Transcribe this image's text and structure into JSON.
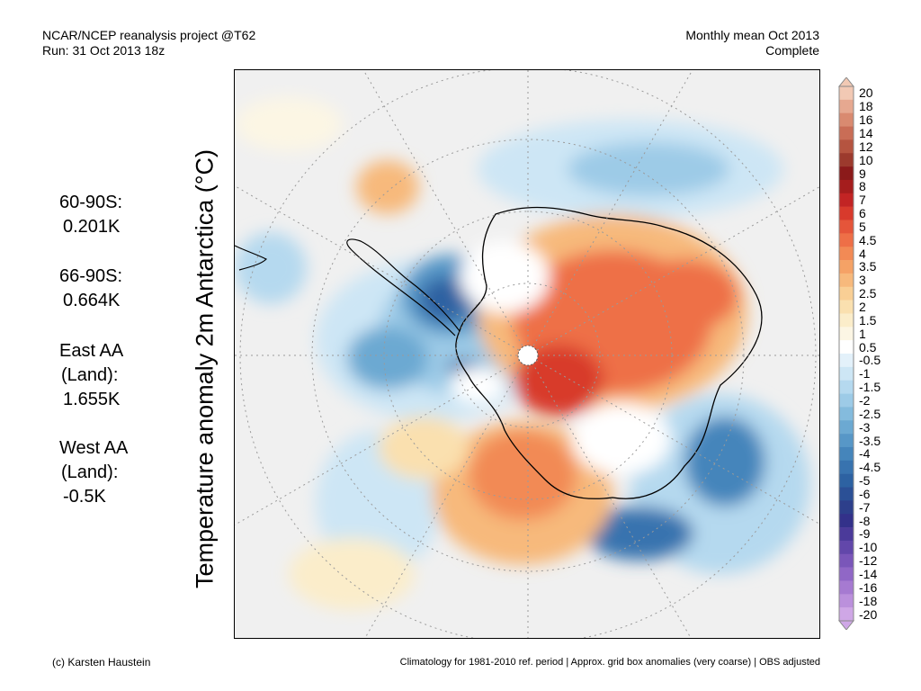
{
  "header": {
    "left_line1": "NCAR/NCEP reanalysis project @T62",
    "left_line2": "Run: 31 Oct 2013 18z",
    "right_line1": "Monthly mean Oct 2013",
    "right_line2": "Complete"
  },
  "ylabel": "Temperature anomaly 2m Antarctica (°C)",
  "stats": [
    {
      "lines": [
        "60-90S:",
        "0.201K"
      ]
    },
    {
      "lines": [
        "66-90S:",
        "0.664K"
      ]
    },
    {
      "lines": [
        "East AA",
        "(Land):",
        "1.655K"
      ]
    },
    {
      "lines": [
        "West AA",
        "(Land):",
        "-0.5K"
      ]
    }
  ],
  "footer": {
    "left": "(c) Karsten Haustein",
    "right": "Climatology for 1981-2010 ref. period | Approx. grid box anomalies (very coarse) | OBS adjusted"
  },
  "colorbar": {
    "labels": [
      "20",
      "18",
      "16",
      "14",
      "12",
      "10",
      "9",
      "8",
      "7",
      "6",
      "5",
      "4.5",
      "4",
      "3.5",
      "3",
      "2.5",
      "2",
      "1.5",
      "1",
      "0.5",
      "-0.5",
      "-1",
      "-1.5",
      "-2",
      "-2.5",
      "-3",
      "-3.5",
      "-4",
      "-4.5",
      "-5",
      "-6",
      "-7",
      "-8",
      "-9",
      "-10",
      "-12",
      "-14",
      "-16",
      "-18",
      "-20"
    ],
    "colors": [
      "#f2c9b4",
      "#e6a890",
      "#d98a70",
      "#c96d56",
      "#b55440",
      "#9c3a2d",
      "#8b1a1a",
      "#a51d1d",
      "#c22424",
      "#d83a2c",
      "#e5553a",
      "#ee6f47",
      "#f28a55",
      "#f5a266",
      "#f7b97c",
      "#f9cf95",
      "#fae0af",
      "#fbedca",
      "#fcf6e4",
      "#ffffff",
      "#e3f1fa",
      "#cde6f5",
      "#b5d9ef",
      "#9dcbe7",
      "#84bbdd",
      "#6ca9d2",
      "#5797c7",
      "#4585bb",
      "#3873af",
      "#2d62a2",
      "#2b5096",
      "#2d3f8b",
      "#33318a",
      "#4b3a9a",
      "#6247aa",
      "#7a56b9",
      "#9067c6",
      "#a67ad1",
      "#bb90dc",
      "#cfa7e6"
    ]
  },
  "map_colors": {
    "background": "#f0f0f0",
    "land_outline": "#000000",
    "grid": "#9a9a9a"
  }
}
